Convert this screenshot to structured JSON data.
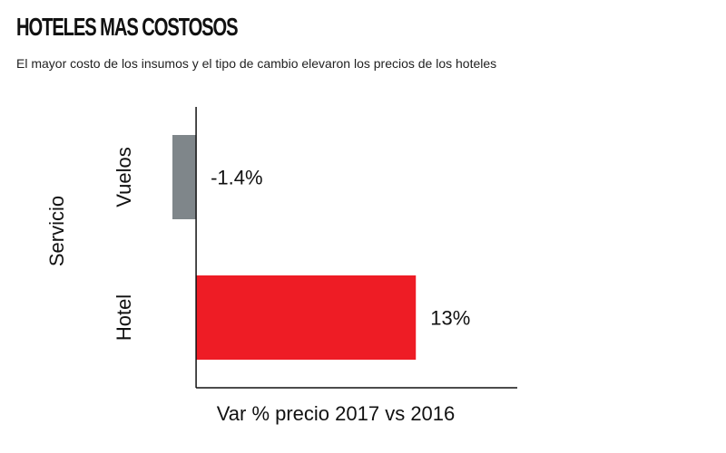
{
  "header": {
    "title": "HOTELES MAS COSTOSOS",
    "subtitle": "El mayor costo de los insumos y el tipo de cambio elevaron los precios de los hoteles"
  },
  "chart_data": {
    "type": "bar",
    "orientation": "horizontal",
    "title": "HOTELES MAS COSTOSOS",
    "subtitle": "El mayor costo de los insumos y el tipo de cambio elevaron los precios de los hoteles",
    "xlabel": "Var % precio 2017 vs 2016",
    "ylabel": "Servicio",
    "categories": [
      "Vuelos",
      "Hotel"
    ],
    "values": [
      -1.4,
      13
    ],
    "value_labels": [
      "-1.4%",
      "13%"
    ],
    "colors": [
      "#7f868a",
      "#ee1c25"
    ],
    "xlim": [
      -1.4,
      19
    ],
    "grid": false,
    "legend": "none"
  }
}
